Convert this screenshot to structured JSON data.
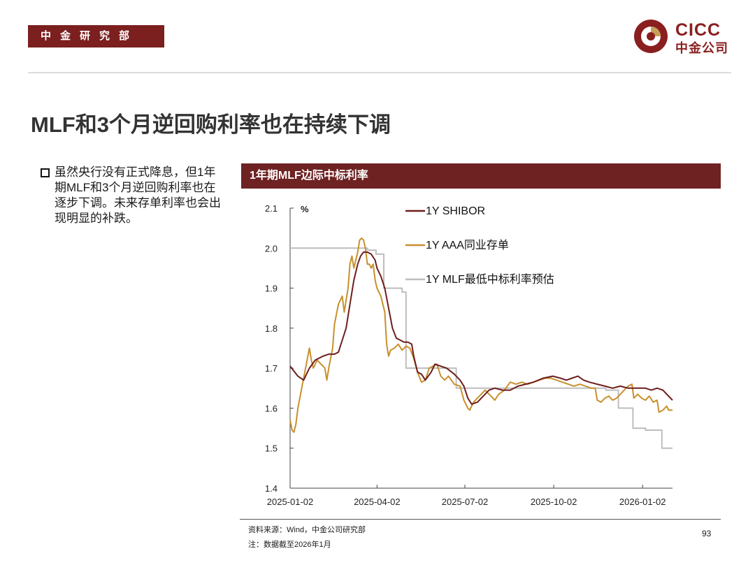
{
  "header": {
    "department": "中金研究部"
  },
  "logo": {
    "en": "CICC",
    "cn": "中金公司"
  },
  "page_title": "MLF和3个月逆回购利率也在持续下调",
  "bullet": "虽然央行没有正式降息，但1年期MLF和3个月逆回购利率也在逐步下调。未来存单利率也会出现明显的补跌。",
  "chart_header": "1年期MLF边际中标利率",
  "footer": {
    "source": "资料来源：Wind，中金公司研究部",
    "note": "注：数据截至2026年1月",
    "page_number": "93"
  },
  "colors": {
    "shibor": "#6e1e1e",
    "aaa": "#c8902c",
    "mlf": "#bdbdbd",
    "brand": "#7b1f1f"
  },
  "chart_data": {
    "type": "line",
    "title": "1年期MLF边际中标利率",
    "ylabel": "%",
    "xlabel": "",
    "ylim": [
      1.4,
      2.1
    ],
    "yticks": [
      "2.1",
      "2.0",
      "1.9",
      "1.8",
      "1.7",
      "1.6",
      "1.5",
      "1.4"
    ],
    "xlim": [
      0,
      396
    ],
    "xticks": [
      {
        "label": "2025-01-02",
        "day": 0
      },
      {
        "label": "2025-04-02",
        "day": 90
      },
      {
        "label": "2025-07-02",
        "day": 181
      },
      {
        "label": "2025-10-02",
        "day": 273
      },
      {
        "label": "2026-01-02",
        "day": 365
      }
    ],
    "legend_position": "top-right",
    "series": [
      {
        "name": "1Y SHIBOR",
        "key": "shibor",
        "step": false,
        "points": [
          [
            0,
            1.705
          ],
          [
            8,
            1.68
          ],
          [
            14,
            1.67
          ],
          [
            20,
            1.7
          ],
          [
            26,
            1.72
          ],
          [
            34,
            1.73
          ],
          [
            40,
            1.735
          ],
          [
            46,
            1.735
          ],
          [
            50,
            1.74
          ],
          [
            54,
            1.77
          ],
          [
            58,
            1.8
          ],
          [
            62,
            1.86
          ],
          [
            66,
            1.92
          ],
          [
            70,
            1.96
          ],
          [
            73,
            1.98
          ],
          [
            76,
            1.99
          ],
          [
            80,
            1.99
          ],
          [
            84,
            1.985
          ],
          [
            88,
            1.97
          ],
          [
            90,
            1.95
          ],
          [
            94,
            1.93
          ],
          [
            98,
            1.9
          ],
          [
            102,
            1.85
          ],
          [
            106,
            1.8
          ],
          [
            110,
            1.775
          ],
          [
            114,
            1.77
          ],
          [
            118,
            1.765
          ],
          [
            122,
            1.765
          ],
          [
            126,
            1.76
          ],
          [
            128,
            1.73
          ],
          [
            132,
            1.69
          ],
          [
            136,
            1.685
          ],
          [
            140,
            1.67
          ],
          [
            146,
            1.69
          ],
          [
            150,
            1.71
          ],
          [
            156,
            1.705
          ],
          [
            162,
            1.7
          ],
          [
            170,
            1.685
          ],
          [
            176,
            1.67
          ],
          [
            180,
            1.655
          ],
          [
            184,
            1.625
          ],
          [
            188,
            1.61
          ],
          [
            194,
            1.615
          ],
          [
            200,
            1.63
          ],
          [
            206,
            1.645
          ],
          [
            212,
            1.65
          ],
          [
            220,
            1.645
          ],
          [
            228,
            1.645
          ],
          [
            236,
            1.655
          ],
          [
            244,
            1.66
          ],
          [
            252,
            1.665
          ],
          [
            262,
            1.675
          ],
          [
            272,
            1.68
          ],
          [
            280,
            1.675
          ],
          [
            286,
            1.67
          ],
          [
            292,
            1.675
          ],
          [
            298,
            1.68
          ],
          [
            304,
            1.67
          ],
          [
            310,
            1.665
          ],
          [
            318,
            1.66
          ],
          [
            326,
            1.655
          ],
          [
            334,
            1.65
          ],
          [
            342,
            1.655
          ],
          [
            350,
            1.65
          ],
          [
            360,
            1.65
          ],
          [
            368,
            1.65
          ],
          [
            374,
            1.645
          ],
          [
            380,
            1.65
          ],
          [
            386,
            1.645
          ],
          [
            390,
            1.635
          ],
          [
            396,
            1.62
          ]
        ]
      },
      {
        "name": "1Y AAA同业存单",
        "key": "aaa",
        "step": false,
        "points": [
          [
            0,
            1.57
          ],
          [
            2,
            1.545
          ],
          [
            4,
            1.54
          ],
          [
            6,
            1.56
          ],
          [
            8,
            1.6
          ],
          [
            12,
            1.65
          ],
          [
            16,
            1.7
          ],
          [
            20,
            1.75
          ],
          [
            22,
            1.72
          ],
          [
            24,
            1.7
          ],
          [
            28,
            1.72
          ],
          [
            32,
            1.71
          ],
          [
            36,
            1.7
          ],
          [
            38,
            1.67
          ],
          [
            40,
            1.7
          ],
          [
            44,
            1.75
          ],
          [
            46,
            1.81
          ],
          [
            50,
            1.86
          ],
          [
            54,
            1.88
          ],
          [
            56,
            1.84
          ],
          [
            60,
            1.9
          ],
          [
            62,
            1.96
          ],
          [
            64,
            1.98
          ],
          [
            66,
            1.95
          ],
          [
            68,
            1.97
          ],
          [
            70,
            1.99
          ],
          [
            72,
            2.02
          ],
          [
            74,
            2.025
          ],
          [
            76,
            2.02
          ],
          [
            78,
            2.0
          ],
          [
            80,
            1.96
          ],
          [
            82,
            1.96
          ],
          [
            84,
            1.95
          ],
          [
            86,
            1.96
          ],
          [
            88,
            1.92
          ],
          [
            90,
            1.9
          ],
          [
            94,
            1.88
          ],
          [
            98,
            1.84
          ],
          [
            100,
            1.76
          ],
          [
            102,
            1.73
          ],
          [
            104,
            1.745
          ],
          [
            108,
            1.75
          ],
          [
            112,
            1.76
          ],
          [
            116,
            1.745
          ],
          [
            120,
            1.755
          ],
          [
            124,
            1.75
          ],
          [
            128,
            1.725
          ],
          [
            132,
            1.69
          ],
          [
            136,
            1.665
          ],
          [
            140,
            1.67
          ],
          [
            144,
            1.7
          ],
          [
            148,
            1.705
          ],
          [
            152,
            1.71
          ],
          [
            156,
            1.68
          ],
          [
            160,
            1.67
          ],
          [
            164,
            1.68
          ],
          [
            170,
            1.66
          ],
          [
            176,
            1.655
          ],
          [
            180,
            1.62
          ],
          [
            184,
            1.6
          ],
          [
            186,
            1.595
          ],
          [
            190,
            1.615
          ],
          [
            196,
            1.63
          ],
          [
            202,
            1.645
          ],
          [
            208,
            1.63
          ],
          [
            212,
            1.62
          ],
          [
            216,
            1.635
          ],
          [
            222,
            1.645
          ],
          [
            228,
            1.665
          ],
          [
            234,
            1.66
          ],
          [
            240,
            1.665
          ],
          [
            246,
            1.66
          ],
          [
            252,
            1.665
          ],
          [
            258,
            1.67
          ],
          [
            264,
            1.675
          ],
          [
            270,
            1.675
          ],
          [
            276,
            1.67
          ],
          [
            282,
            1.665
          ],
          [
            288,
            1.66
          ],
          [
            294,
            1.655
          ],
          [
            300,
            1.66
          ],
          [
            306,
            1.655
          ],
          [
            312,
            1.65
          ],
          [
            316,
            1.65
          ],
          [
            318,
            1.62
          ],
          [
            322,
            1.615
          ],
          [
            326,
            1.625
          ],
          [
            330,
            1.63
          ],
          [
            334,
            1.62
          ],
          [
            338,
            1.625
          ],
          [
            342,
            1.635
          ],
          [
            346,
            1.645
          ],
          [
            350,
            1.655
          ],
          [
            354,
            1.66
          ],
          [
            356,
            1.625
          ],
          [
            360,
            1.635
          ],
          [
            364,
            1.625
          ],
          [
            368,
            1.62
          ],
          [
            372,
            1.63
          ],
          [
            376,
            1.615
          ],
          [
            380,
            1.62
          ],
          [
            382,
            1.59
          ],
          [
            386,
            1.595
          ],
          [
            390,
            1.605
          ],
          [
            392,
            1.595
          ],
          [
            396,
            1.595
          ]
        ]
      },
      {
        "name": "1Y MLF最低中标利率预估",
        "key": "mlf",
        "step": true,
        "points": [
          [
            0,
            2.0
          ],
          [
            80,
            2.0
          ],
          [
            80,
            1.995
          ],
          [
            89,
            1.995
          ],
          [
            89,
            1.985
          ],
          [
            97,
            1.985
          ],
          [
            97,
            1.9
          ],
          [
            116,
            1.9
          ],
          [
            116,
            1.89
          ],
          [
            120,
            1.89
          ],
          [
            120,
            1.7
          ],
          [
            172,
            1.7
          ],
          [
            172,
            1.65
          ],
          [
            327,
            1.65
          ],
          [
            327,
            1.645
          ],
          [
            340,
            1.645
          ],
          [
            340,
            1.6
          ],
          [
            355,
            1.6
          ],
          [
            355,
            1.55
          ],
          [
            368,
            1.55
          ],
          [
            368,
            1.545
          ],
          [
            385,
            1.545
          ],
          [
            385,
            1.5
          ],
          [
            396,
            1.5
          ]
        ]
      }
    ]
  }
}
